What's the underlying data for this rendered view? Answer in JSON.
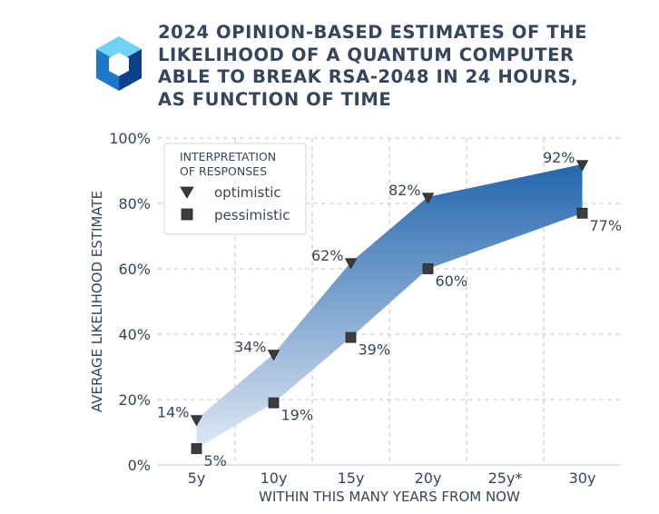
{
  "title_lines": [
    "2024 OPINION-BASED ESTIMATES OF THE",
    "LIKELIHOOD OF A QUANTUM COMPUTER",
    "ABLE TO BREAK RSA-2048 IN 24 HOURS,",
    "AS FUNCTION OF TIME"
  ],
  "logo": {
    "icon": "hexagon-cube-logo-icon",
    "colors": [
      "#6fd3f5",
      "#1f78c8",
      "#0d3f8c"
    ]
  },
  "chart_data": {
    "type": "scatter",
    "title": "2024 OPINION-BASED ESTIMATES OF THE LIKELIHOOD OF A QUANTUM COMPUTER ABLE TO BREAK RSA-2048 IN 24 HOURS, AS FUNCTION OF TIME",
    "xlabel": "WITHIN THIS MANY YEARS FROM NOW",
    "ylabel": "AVERAGE LIKELIHOOD ESTIMATE",
    "categories": [
      "5y",
      "10y",
      "15y",
      "20y",
      "25y*",
      "30y"
    ],
    "ylim": [
      0,
      100
    ],
    "yticks": [
      "0%",
      "20%",
      "40%",
      "60%",
      "80%",
      "100%"
    ],
    "grid": true,
    "legend": {
      "title_lines": [
        "INTERPRETATION",
        "OF RESPONSES"
      ],
      "placement": "top-left"
    },
    "fill_between": {
      "from": "pessimistic",
      "to": "optimistic",
      "colors": [
        "#dfe8f5",
        "#2366ad"
      ]
    },
    "series": [
      {
        "name": "optimistic",
        "marker": "triangle-down",
        "x_index": [
          0,
          1,
          2,
          3,
          5
        ],
        "values": [
          14,
          34,
          62,
          82,
          92
        ],
        "labels": [
          "14%",
          "34%",
          "62%",
          "82%",
          "92%"
        ]
      },
      {
        "name": "pessimistic",
        "marker": "square",
        "x_index": [
          0,
          1,
          2,
          3,
          5
        ],
        "values": [
          5,
          19,
          39,
          60,
          77
        ],
        "labels": [
          "5%",
          "19%",
          "39%",
          "60%",
          "77%"
        ]
      }
    ]
  }
}
